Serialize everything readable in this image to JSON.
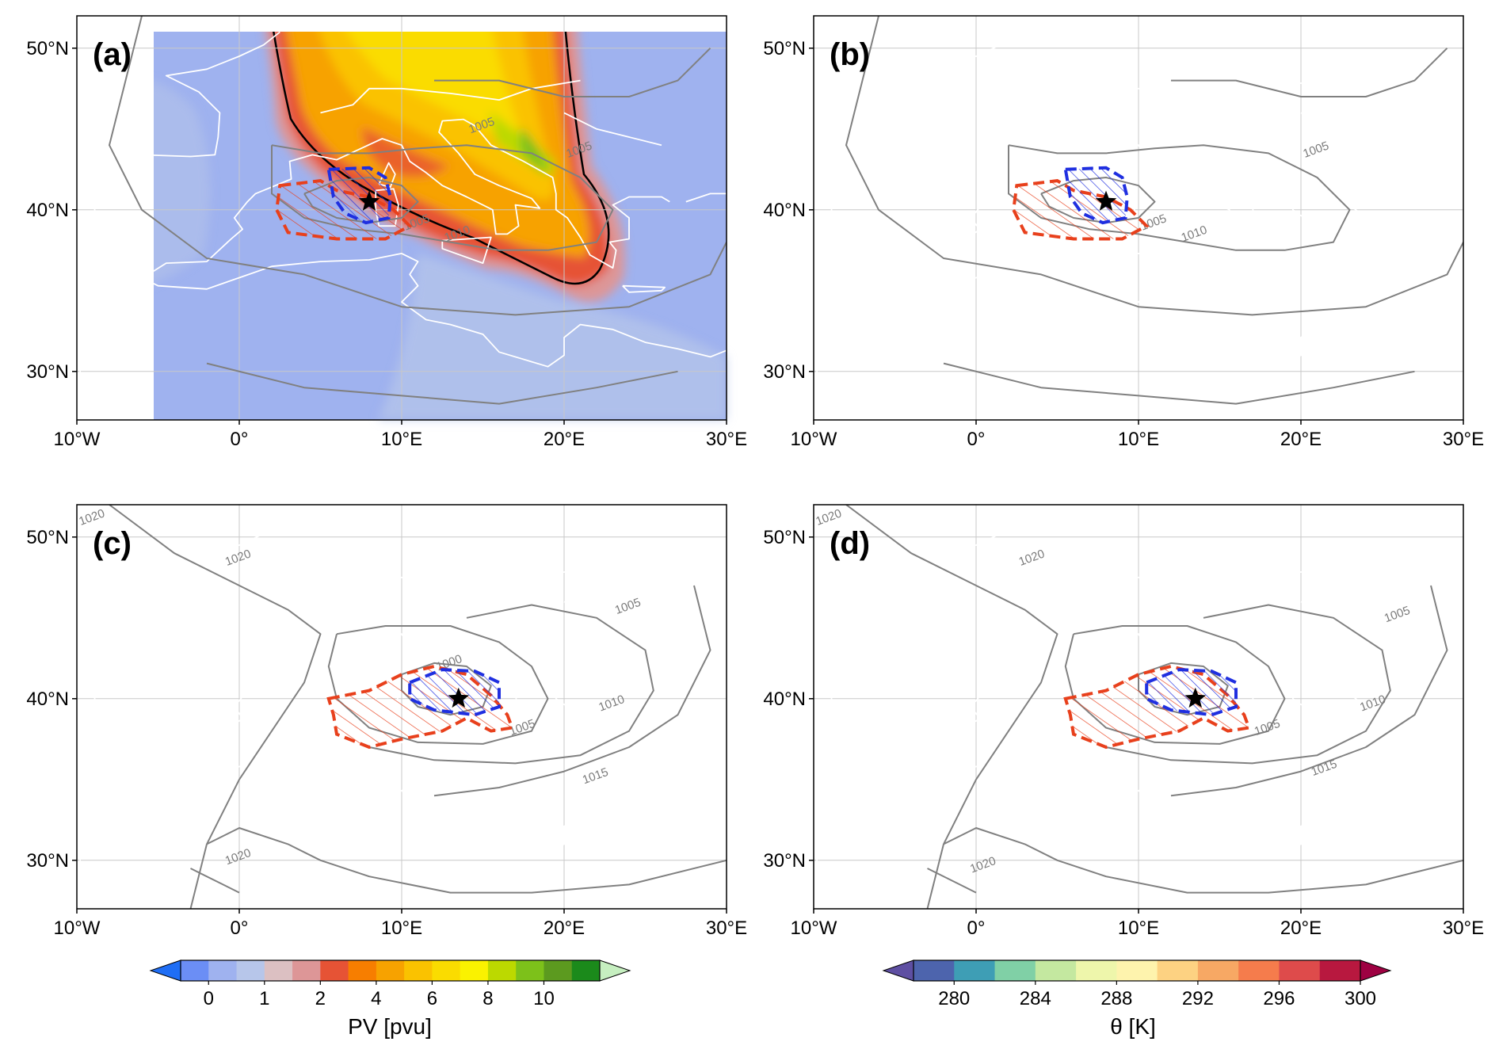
{
  "panels": [
    {
      "id": "a",
      "label": "(a)",
      "variable": "PV",
      "marker_lon": 8.0,
      "marker_lat": 40.5,
      "isobars": [
        {
          "text": "1005",
          "lon": 15.0,
          "lat": 45.0
        },
        {
          "text": "1005",
          "lon": 21.0,
          "lat": 43.5
        },
        {
          "text": "1005",
          "lon": 11.0,
          "lat": 39.0
        },
        {
          "text": "1010",
          "lon": 13.5,
          "lat": 38.3
        }
      ]
    },
    {
      "id": "b",
      "label": "(b)",
      "variable": "theta",
      "marker_lon": 8.0,
      "marker_lat": 40.5,
      "isobars": [
        {
          "text": "1005",
          "lon": 21.0,
          "lat": 43.5
        },
        {
          "text": "1005",
          "lon": 11.0,
          "lat": 39.0
        },
        {
          "text": "1010",
          "lon": 13.5,
          "lat": 38.3
        }
      ]
    },
    {
      "id": "c",
      "label": "(c)",
      "variable": "PV",
      "marker_lon": 13.5,
      "marker_lat": 40.0,
      "isobars": [
        {
          "text": "1020",
          "lon": -9.0,
          "lat": 51.0
        },
        {
          "text": "1020",
          "lon": 0.0,
          "lat": 48.5
        },
        {
          "text": "1000",
          "lon": 13.0,
          "lat": 42.0
        },
        {
          "text": "1005",
          "lon": 17.5,
          "lat": 38.0
        },
        {
          "text": "1010",
          "lon": 23.0,
          "lat": 39.5
        },
        {
          "text": "1015",
          "lon": 22.0,
          "lat": 35.0
        },
        {
          "text": "1005",
          "lon": 24.0,
          "lat": 45.5
        },
        {
          "text": "1020",
          "lon": 0.0,
          "lat": 30.0
        }
      ]
    },
    {
      "id": "d",
      "label": "(d)",
      "variable": "theta",
      "marker_lon": 13.5,
      "marker_lat": 40.0,
      "isobars": [
        {
          "text": "1020",
          "lon": -9.0,
          "lat": 51.0
        },
        {
          "text": "1020",
          "lon": 3.5,
          "lat": 48.5
        },
        {
          "text": "1005",
          "lon": 18.0,
          "lat": 38.0
        },
        {
          "text": "1010",
          "lon": 24.5,
          "lat": 39.5
        },
        {
          "text": "1015",
          "lon": 21.5,
          "lat": 35.5
        },
        {
          "text": "1005",
          "lon": 26.0,
          "lat": 45.0
        },
        {
          "text": "1020",
          "lon": 0.5,
          "lat": 29.5
        }
      ]
    }
  ],
  "map": {
    "lon_range": [
      -10,
      30
    ],
    "lat_range": [
      27,
      52
    ],
    "lon_ticks": [
      "10°W",
      "0°",
      "10°E",
      "20°E",
      "30°E"
    ],
    "lon_tick_values": [
      -10,
      0,
      10,
      20,
      30
    ],
    "lat_ticks": [
      "50°N",
      "40°N",
      "30°N"
    ],
    "lat_tick_values": [
      50,
      40,
      30
    ],
    "gridlines": true
  },
  "colorbars": {
    "pv": {
      "label": "PV [pvu]",
      "tick_labels": [
        "0",
        "1",
        "2",
        "4",
        "6",
        "8",
        "10"
      ],
      "tick_positions": [
        1,
        3,
        5,
        7,
        9,
        11,
        13
      ],
      "colors": [
        "#1f6ef5",
        "#6b8ef5",
        "#9fb2ef",
        "#b7c6ea",
        "#dcc0c2",
        "#dd9697",
        "#e65335",
        "#f77e00",
        "#f7a200",
        "#fac200",
        "#fadc00",
        "#faf200",
        "#bcd900",
        "#7dc11a",
        "#5c9a1f",
        "#1b8a1b",
        "#c6efc0"
      ],
      "extend": "both"
    },
    "theta": {
      "label": "θ [K]",
      "tick_labels": [
        "280",
        "284",
        "288",
        "292",
        "296",
        "300"
      ],
      "tick_positions": [
        1,
        3,
        5,
        7,
        9,
        11
      ],
      "colors": [
        "#5e4fa2",
        "#4d64ad",
        "#3e9eb5",
        "#80d0a6",
        "#c4e8a0",
        "#eef6ab",
        "#fef3ad",
        "#fdd282",
        "#f7a864",
        "#f57c4c",
        "#de4b4b",
        "#b8183f",
        "#9e0142"
      ],
      "extend": "both"
    }
  },
  "colors": {
    "isobar": "#808080",
    "coast": "#ffffff",
    "blue_region": "#1f2fe0",
    "red_region": "#e8401c",
    "pv2_contour": "#000000"
  }
}
